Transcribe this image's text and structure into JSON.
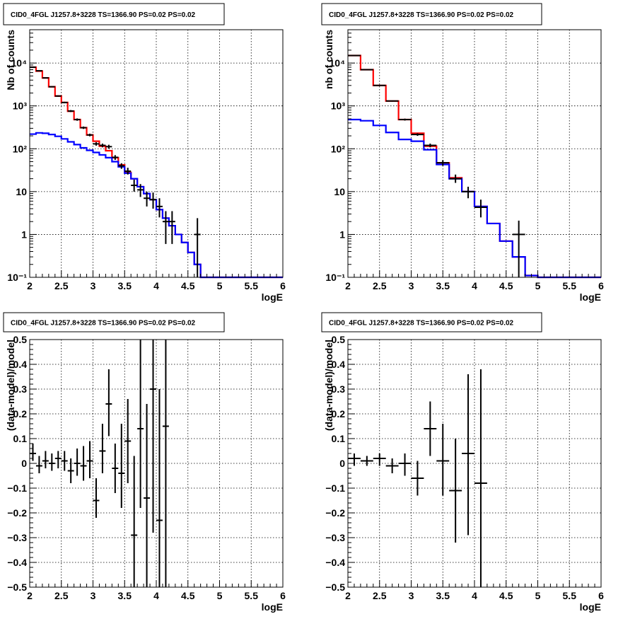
{
  "chart_data": [
    {
      "type": "line",
      "title": "CID0_4FGL J1257.8+3228 TS=1366.90 PS=0.02 PS=0.02",
      "xlabel": "logE",
      "ylabel": "Nb of counts",
      "xlim": [
        2,
        6
      ],
      "ylim": [
        0.1,
        60000
      ],
      "yscale": "log",
      "grid": true,
      "xticks": [
        "2",
        "2.5",
        "3",
        "3.5",
        "4",
        "4.5",
        "5",
        "5.5",
        "6"
      ],
      "yticks": [
        {
          "v": 0.1,
          "label": "10⁻¹"
        },
        {
          "v": 1,
          "label": "1"
        },
        {
          "v": 10,
          "label": "10"
        },
        {
          "v": 100,
          "label": "10²"
        },
        {
          "v": 1000,
          "label": "10³"
        },
        {
          "v": 10000,
          "label": "10⁴"
        }
      ],
      "bin_edges": [
        2.0,
        2.1,
        2.2,
        2.3,
        2.4,
        2.5,
        2.6,
        2.7,
        2.8,
        2.9,
        3.0,
        3.1,
        3.2,
        3.3,
        3.4,
        3.5,
        3.6,
        3.7,
        3.8,
        3.9,
        4.0,
        4.1,
        4.2,
        4.3,
        4.4,
        4.5,
        4.6,
        4.7,
        4.8,
        4.9,
        5.0,
        5.1,
        5.2,
        5.3,
        5.4,
        5.5,
        5.6,
        5.7,
        5.8,
        5.9,
        6.0
      ],
      "series": [
        {
          "values": [
            8000,
            6500,
            4500,
            2800,
            1700,
            1200,
            750,
            480,
            310,
            210,
            150,
            115,
            90,
            62,
            42,
            28,
            20,
            13,
            9,
            6.5,
            3.8,
            2.4,
            1.6,
            1.0,
            0.65,
            0.38,
            0.2,
            0.1,
            0.1,
            0.1,
            0.1,
            0.1,
            0.1,
            0.1,
            0.1,
            0.1,
            0.1,
            0.1,
            0.1,
            0.1
          ],
          "color": "#ff0000"
        },
        {
          "values": [
            220,
            235,
            230,
            215,
            195,
            170,
            145,
            125,
            105,
            92,
            82,
            72,
            62,
            50,
            38,
            27,
            20,
            13,
            9,
            6.5,
            3.8,
            2.4,
            1.6,
            1.0,
            0.65,
            0.38,
            0.2,
            0.1,
            0.1,
            0.1,
            0.1,
            0.1,
            0.1,
            0.1,
            0.1,
            0.1,
            0.1,
            0.1,
            0.1,
            0.1
          ],
          "color": "#0000ff"
        }
      ],
      "data_points": [
        {
          "x": 2.05,
          "y": 8000,
          "lo": 7900,
          "hi": 8100
        },
        {
          "x": 2.15,
          "y": 6600,
          "lo": 6500,
          "hi": 6700
        },
        {
          "x": 2.25,
          "y": 4500,
          "lo": 4400,
          "hi": 4600
        },
        {
          "x": 2.35,
          "y": 2800,
          "lo": 2720,
          "hi": 2880
        },
        {
          "x": 2.45,
          "y": 1700,
          "lo": 1640,
          "hi": 1760
        },
        {
          "x": 2.55,
          "y": 1200,
          "lo": 1150,
          "hi": 1250
        },
        {
          "x": 2.65,
          "y": 760,
          "lo": 720,
          "hi": 800
        },
        {
          "x": 2.75,
          "y": 480,
          "lo": 450,
          "hi": 510
        },
        {
          "x": 2.85,
          "y": 310,
          "lo": 290,
          "hi": 330
        },
        {
          "x": 2.95,
          "y": 210,
          "lo": 195,
          "hi": 225
        },
        {
          "x": 3.05,
          "y": 130,
          "lo": 118,
          "hi": 142
        },
        {
          "x": 3.15,
          "y": 120,
          "lo": 108,
          "hi": 132
        },
        {
          "x": 3.25,
          "y": 112,
          "lo": 100,
          "hi": 124
        },
        {
          "x": 3.35,
          "y": 63,
          "lo": 55,
          "hi": 71
        },
        {
          "x": 3.45,
          "y": 40,
          "lo": 34,
          "hi": 46
        },
        {
          "x": 3.55,
          "y": 30,
          "lo": 25,
          "hi": 36
        },
        {
          "x": 3.65,
          "y": 14,
          "lo": 10,
          "hi": 19
        },
        {
          "x": 3.75,
          "y": 11,
          "lo": 7.5,
          "hi": 15
        },
        {
          "x": 3.85,
          "y": 7,
          "lo": 4.5,
          "hi": 10
        },
        {
          "x": 3.95,
          "y": 6.5,
          "lo": 4,
          "hi": 9.5
        },
        {
          "x": 4.05,
          "y": 4.5,
          "lo": 2.5,
          "hi": 7
        },
        {
          "x": 4.15,
          "y": 2,
          "lo": 0.6,
          "hi": 3.5
        },
        {
          "x": 4.25,
          "y": 2,
          "lo": 0.6,
          "hi": 3.5
        },
        {
          "x": 4.65,
          "y": 1,
          "lo": 0.1,
          "hi": 2.4
        }
      ]
    },
    {
      "type": "line",
      "title": "CID0_4FGL J1257.8+3228 TS=1366.90 PS=0.02 PS=0.02",
      "xlabel": "logE",
      "ylabel": "nb of counts",
      "xlim": [
        2,
        6
      ],
      "ylim": [
        0.1,
        60000
      ],
      "yscale": "log",
      "grid": true,
      "xticks": [
        "2",
        "2.5",
        "3",
        "3.5",
        "4",
        "4.5",
        "5",
        "5.5",
        "6"
      ],
      "yticks": [
        {
          "v": 0.1,
          "label": "10⁻¹"
        },
        {
          "v": 1,
          "label": "1"
        },
        {
          "v": 10,
          "label": "10"
        },
        {
          "v": 100,
          "label": "10²"
        },
        {
          "v": 1000,
          "label": "10³"
        },
        {
          "v": 10000,
          "label": "10⁴"
        }
      ],
      "bin_edges": [
        2.0,
        2.2,
        2.4,
        2.6,
        2.8,
        3.0,
        3.2,
        3.4,
        3.6,
        3.8,
        4.0,
        4.2,
        4.4,
        4.6,
        4.8,
        5.0,
        5.2,
        5.4,
        5.6,
        5.8,
        6.0
      ],
      "series": [
        {
          "values": [
            15000,
            7000,
            3000,
            1300,
            480,
            230,
            115,
            47,
            21,
            10,
            4.5,
            1.8,
            0.7,
            0.3,
            0.11,
            0.1,
            0.1,
            0.1,
            0.1,
            0.1
          ],
          "color": "#ff0000"
        },
        {
          "values": [
            480,
            450,
            350,
            240,
            165,
            150,
            95,
            43,
            20,
            10,
            4.5,
            1.8,
            0.7,
            0.3,
            0.11,
            0.1,
            0.1,
            0.1,
            0.1,
            0.1
          ],
          "color": "#0000ff"
        }
      ],
      "data_points": [
        {
          "x": 2.1,
          "y": 15000,
          "lo": 14800,
          "hi": 15200
        },
        {
          "x": 2.3,
          "y": 7000,
          "lo": 6900,
          "hi": 7100
        },
        {
          "x": 2.5,
          "y": 3000,
          "lo": 2940,
          "hi": 3060
        },
        {
          "x": 2.7,
          "y": 1300,
          "lo": 1260,
          "hi": 1340
        },
        {
          "x": 2.9,
          "y": 480,
          "lo": 455,
          "hi": 505
        },
        {
          "x": 3.1,
          "y": 215,
          "lo": 200,
          "hi": 230
        },
        {
          "x": 3.3,
          "y": 120,
          "lo": 108,
          "hi": 132
        },
        {
          "x": 3.5,
          "y": 47,
          "lo": 40,
          "hi": 54
        },
        {
          "x": 3.7,
          "y": 20,
          "lo": 16,
          "hi": 25
        },
        {
          "x": 3.9,
          "y": 10,
          "lo": 7,
          "hi": 13
        },
        {
          "x": 4.1,
          "y": 4.3,
          "lo": 2.5,
          "hi": 6.5
        },
        {
          "x": 4.7,
          "y": 1,
          "lo": 0.1,
          "hi": 2.1
        }
      ]
    },
    {
      "type": "scatter",
      "title": "CID0_4FGL J1257.8+3228 TS=1366.90 PS=0.02 PS=0.02",
      "xlabel": "logE",
      "ylabel": "(data-model)/model",
      "xlim": [
        2,
        6
      ],
      "ylim": [
        -0.5,
        0.5
      ],
      "grid": true,
      "xticks": [
        "2",
        "2.5",
        "3",
        "3.5",
        "4",
        "4.5",
        "5",
        "5.5",
        "6"
      ],
      "yticks": [
        {
          "v": -0.5,
          "label": "−0.5"
        },
        {
          "v": -0.4,
          "label": "−0.4"
        },
        {
          "v": -0.3,
          "label": "−0.3"
        },
        {
          "v": -0.2,
          "label": "−0.2"
        },
        {
          "v": -0.1,
          "label": "−0.1"
        },
        {
          "v": 0,
          "label": "0"
        },
        {
          "v": 0.1,
          "label": "0.1"
        },
        {
          "v": 0.2,
          "label": "0.2"
        },
        {
          "v": 0.3,
          "label": "0.3"
        },
        {
          "v": 0.4,
          "label": "0.4"
        },
        {
          "v": 0.5,
          "label": "0.5"
        }
      ],
      "bin_width": 0.1,
      "data_points": [
        {
          "x": 2.05,
          "y": 0.04,
          "lo": 0.01,
          "hi": 0.08
        },
        {
          "x": 2.15,
          "y": -0.01,
          "lo": -0.04,
          "hi": 0.03
        },
        {
          "x": 2.25,
          "y": 0.01,
          "lo": -0.02,
          "hi": 0.05
        },
        {
          "x": 2.35,
          "y": 0.0,
          "lo": -0.03,
          "hi": 0.04
        },
        {
          "x": 2.45,
          "y": 0.02,
          "lo": -0.02,
          "hi": 0.05
        },
        {
          "x": 2.55,
          "y": 0.01,
          "lo": -0.03,
          "hi": 0.05
        },
        {
          "x": 2.65,
          "y": -0.03,
          "lo": -0.08,
          "hi": 0.02
        },
        {
          "x": 2.75,
          "y": 0.0,
          "lo": -0.05,
          "hi": 0.06
        },
        {
          "x": 2.85,
          "y": -0.01,
          "lo": -0.07,
          "hi": 0.07
        },
        {
          "x": 2.95,
          "y": 0.01,
          "lo": -0.06,
          "hi": 0.09
        },
        {
          "x": 3.05,
          "y": -0.15,
          "lo": -0.22,
          "hi": -0.06
        },
        {
          "x": 3.15,
          "y": 0.05,
          "lo": -0.04,
          "hi": 0.16
        },
        {
          "x": 3.25,
          "y": 0.24,
          "lo": 0.11,
          "hi": 0.38
        },
        {
          "x": 3.35,
          "y": -0.02,
          "lo": -0.12,
          "hi": 0.08
        },
        {
          "x": 3.45,
          "y": -0.04,
          "lo": -0.18,
          "hi": 0.16
        },
        {
          "x": 3.55,
          "y": 0.09,
          "lo": -0.08,
          "hi": 0.26
        },
        {
          "x": 3.65,
          "y": -0.29,
          "lo": -0.5,
          "hi": 0.03
        },
        {
          "x": 3.75,
          "y": 0.14,
          "lo": -0.18,
          "hi": 0.5
        },
        {
          "x": 3.85,
          "y": -0.14,
          "lo": -0.5,
          "hi": 0.24
        },
        {
          "x": 3.95,
          "y": 0.3,
          "lo": -0.28,
          "hi": 0.5
        },
        {
          "x": 4.05,
          "y": -0.23,
          "lo": -0.5,
          "hi": 0.3
        },
        {
          "x": 4.15,
          "y": 0.15,
          "lo": -0.5,
          "hi": 0.5
        }
      ]
    },
    {
      "type": "scatter",
      "title": "CID0_4FGL J1257.8+3228 TS=1366.90 PS=0.02 PS=0.02",
      "xlabel": "logE",
      "ylabel": "(data-model)/model",
      "xlim": [
        2,
        6
      ],
      "ylim": [
        -0.5,
        0.5
      ],
      "grid": true,
      "xticks": [
        "2",
        "2.5",
        "3",
        "3.5",
        "4",
        "4.5",
        "5",
        "5.5",
        "6"
      ],
      "yticks": [
        {
          "v": -0.5,
          "label": "−0.5"
        },
        {
          "v": -0.4,
          "label": "−0.4"
        },
        {
          "v": -0.3,
          "label": "−0.3"
        },
        {
          "v": -0.2,
          "label": "−0.2"
        },
        {
          "v": -0.1,
          "label": "−0.1"
        },
        {
          "v": 0,
          "label": "0"
        },
        {
          "v": 0.1,
          "label": "0.1"
        },
        {
          "v": 0.2,
          "label": "0.2"
        },
        {
          "v": 0.3,
          "label": "0.3"
        },
        {
          "v": 0.4,
          "label": "0.4"
        },
        {
          "v": 0.5,
          "label": "0.5"
        }
      ],
      "bin_width": 0.2,
      "data_points": [
        {
          "x": 2.1,
          "y": 0.02,
          "lo": -0.01,
          "hi": 0.04
        },
        {
          "x": 2.3,
          "y": 0.01,
          "lo": -0.01,
          "hi": 0.03
        },
        {
          "x": 2.5,
          "y": 0.02,
          "lo": -0.01,
          "hi": 0.04
        },
        {
          "x": 2.7,
          "y": -0.01,
          "lo": -0.04,
          "hi": 0.02
        },
        {
          "x": 2.9,
          "y": 0.0,
          "lo": -0.05,
          "hi": 0.04
        },
        {
          "x": 3.1,
          "y": -0.06,
          "lo": -0.13,
          "hi": 0.01
        },
        {
          "x": 3.3,
          "y": 0.14,
          "lo": 0.03,
          "hi": 0.25
        },
        {
          "x": 3.5,
          "y": 0.01,
          "lo": -0.13,
          "hi": 0.16
        },
        {
          "x": 3.7,
          "y": -0.11,
          "lo": -0.32,
          "hi": 0.1
        },
        {
          "x": 3.9,
          "y": 0.04,
          "lo": -0.29,
          "hi": 0.36
        },
        {
          "x": 4.1,
          "y": -0.08,
          "lo": -0.5,
          "hi": 0.38
        }
      ]
    }
  ]
}
